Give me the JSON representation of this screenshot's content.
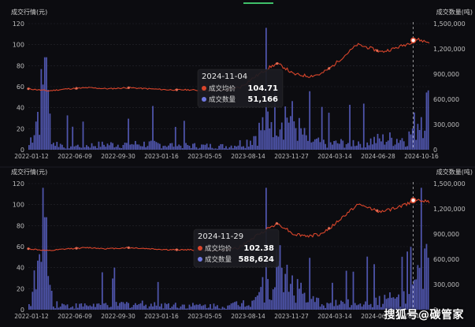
{
  "chart_data": [
    {
      "type": "bar+line",
      "ylabel_left": "成交行情(元)",
      "ylabel_right": "成交数量(吨)",
      "yticks_left": [
        "0",
        "20",
        "40",
        "60",
        "80",
        "100",
        "120"
      ],
      "yticks_right": [
        "0",
        "300,000",
        "600,000",
        "900,000",
        "1,200,000",
        "1,500,000"
      ],
      "ylim_left": [
        0,
        120
      ],
      "ylim_right": [
        0,
        1500000
      ],
      "xticks": [
        "2022-01-12",
        "2022-06-09",
        "2022-09-30",
        "2023-01-16",
        "2023-05-05",
        "2023-08-14",
        "2023-11-27",
        "2024-03-14",
        "2024-06-28",
        "2024-10-16"
      ],
      "price_series_name": "成交均价",
      "volume_series_name": "成交数量",
      "price_curve": [
        [
          0,
          58
        ],
        [
          0.05,
          56
        ],
        [
          0.1,
          58
        ],
        [
          0.15,
          59
        ],
        [
          0.2,
          58
        ],
        [
          0.25,
          59
        ],
        [
          0.3,
          58
        ],
        [
          0.35,
          57
        ],
        [
          0.4,
          57
        ],
        [
          0.45,
          56
        ],
        [
          0.5,
          57
        ],
        [
          0.53,
          60
        ],
        [
          0.56,
          68
        ],
        [
          0.6,
          78
        ],
        [
          0.62,
          82
        ],
        [
          0.64,
          78
        ],
        [
          0.66,
          72
        ],
        [
          0.7,
          70
        ],
        [
          0.73,
          72
        ],
        [
          0.76,
          80
        ],
        [
          0.79,
          90
        ],
        [
          0.82,
          100
        ],
        [
          0.85,
          97
        ],
        [
          0.88,
          93
        ],
        [
          0.91,
          96
        ],
        [
          0.94,
          100
        ],
        [
          0.97,
          105
        ],
        [
          1.0,
          102
        ]
      ],
      "volume_profile": [
        [
          0,
          80
        ],
        [
          0.04,
          1100
        ],
        [
          0.06,
          120
        ],
        [
          0.1,
          60
        ],
        [
          0.2,
          90
        ],
        [
          0.3,
          100
        ],
        [
          0.4,
          70
        ],
        [
          0.5,
          60
        ],
        [
          0.55,
          150
        ],
        [
          0.58,
          350
        ],
        [
          0.6,
          550
        ],
        [
          0.62,
          700
        ],
        [
          0.64,
          650
        ],
        [
          0.66,
          500
        ],
        [
          0.68,
          300
        ],
        [
          0.7,
          150
        ],
        [
          0.75,
          100
        ],
        [
          0.8,
          120
        ],
        [
          0.85,
          150
        ],
        [
          0.9,
          180
        ],
        [
          0.95,
          200
        ],
        [
          0.97,
          450
        ],
        [
          0.99,
          800
        ],
        [
          1.0,
          650
        ]
      ],
      "tooltip": {
        "date": "2024-11-04",
        "price_label": "成交均价",
        "price": "104.71",
        "volume_label": "成交数量",
        "volume": "51,166"
      }
    },
    {
      "type": "bar+line",
      "ylabel_left": "成交行情(元)",
      "ylabel_right": "成交数量(吨)",
      "yticks_left": [
        "0",
        "20",
        "40",
        "60",
        "80",
        "100",
        "120"
      ],
      "yticks_right": [
        "0",
        "300,000",
        "600,000",
        "900,000",
        "1,200,000",
        "1,500,000"
      ],
      "ylim_left": [
        0,
        120
      ],
      "ylim_right": [
        0,
        1500000
      ],
      "xticks": [
        "2022-01-12",
        "2022-06-09",
        "2022-09-30",
        "2023-01-16",
        "2023-05-05",
        "2023-08-14",
        "2023-11-27",
        "2024-03-14",
        "2024-06-28",
        "2024-10-16"
      ],
      "price_series_name": "成交均价",
      "volume_series_name": "成交数量",
      "price_curve": [
        [
          0,
          58
        ],
        [
          0.05,
          56
        ],
        [
          0.1,
          58
        ],
        [
          0.15,
          59
        ],
        [
          0.2,
          58
        ],
        [
          0.25,
          59
        ],
        [
          0.3,
          58
        ],
        [
          0.35,
          57
        ],
        [
          0.4,
          57
        ],
        [
          0.45,
          56
        ],
        [
          0.5,
          57
        ],
        [
          0.53,
          60
        ],
        [
          0.56,
          68
        ],
        [
          0.6,
          78
        ],
        [
          0.62,
          82
        ],
        [
          0.64,
          78
        ],
        [
          0.66,
          72
        ],
        [
          0.7,
          70
        ],
        [
          0.73,
          72
        ],
        [
          0.76,
          80
        ],
        [
          0.79,
          90
        ],
        [
          0.82,
          100
        ],
        [
          0.85,
          97
        ],
        [
          0.88,
          93
        ],
        [
          0.91,
          96
        ],
        [
          0.94,
          100
        ],
        [
          0.97,
          105
        ],
        [
          1.0,
          102
        ]
      ],
      "volume_profile": [
        [
          0,
          80
        ],
        [
          0.04,
          1100
        ],
        [
          0.06,
          120
        ],
        [
          0.1,
          60
        ],
        [
          0.2,
          90
        ],
        [
          0.3,
          100
        ],
        [
          0.4,
          70
        ],
        [
          0.5,
          60
        ],
        [
          0.55,
          150
        ],
        [
          0.58,
          350
        ],
        [
          0.6,
          550
        ],
        [
          0.62,
          700
        ],
        [
          0.64,
          650
        ],
        [
          0.66,
          500
        ],
        [
          0.68,
          300
        ],
        [
          0.7,
          150
        ],
        [
          0.75,
          100
        ],
        [
          0.8,
          120
        ],
        [
          0.85,
          150
        ],
        [
          0.9,
          180
        ],
        [
          0.95,
          200
        ],
        [
          0.97,
          450
        ],
        [
          0.99,
          800
        ],
        [
          1.0,
          650
        ]
      ],
      "tooltip": {
        "date": "2024-11-29",
        "price_label": "成交均价",
        "price": "102.38",
        "volume_label": "成交数量",
        "volume": "588,624"
      }
    }
  ],
  "colors": {
    "price": "#d9452b",
    "volume": "#6f78e0",
    "volume_fill": "#5c63c8"
  },
  "watermark": "搜狐号@碳管家"
}
